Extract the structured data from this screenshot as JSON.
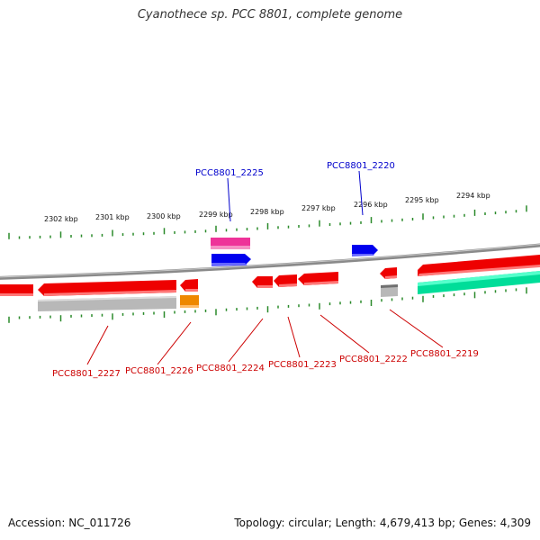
{
  "title": "Cyanothece sp. PCC 8801, complete genome",
  "footer": {
    "accession": "Accession: NC_011726",
    "summary": "Topology: circular; Length: 4,679,413 bp; Genes: 4,309"
  },
  "colors": {
    "backbone": "#8a8a8a",
    "tick": "#2a8a2a",
    "forward_label": "#0000cc",
    "reverse_label": "#cc0000",
    "gene_red": "#ee0000",
    "gene_blue": "#0000ee",
    "gene_pink": "#ee3399",
    "gene_gray": "#b8b8b8",
    "gene_orange": "#ee8800",
    "gene_teal": "#00dd99"
  },
  "ruler_labels": [
    "2302 kbp",
    "2301 kbp",
    "2300 kbp",
    "2299 kbp",
    "2298 kbp",
    "2297 kbp",
    "2296 kbp",
    "2295 kbp",
    "2294 kbp"
  ],
  "forward_gene_labels": [
    "PCC8801_2225",
    "PCC8801_2220"
  ],
  "reverse_gene_labels": [
    "PCC8801_2227",
    "PCC8801_2226",
    "PCC8801_2224",
    "PCC8801_2223",
    "PCC8801_2222",
    "PCC8801_2219"
  ]
}
